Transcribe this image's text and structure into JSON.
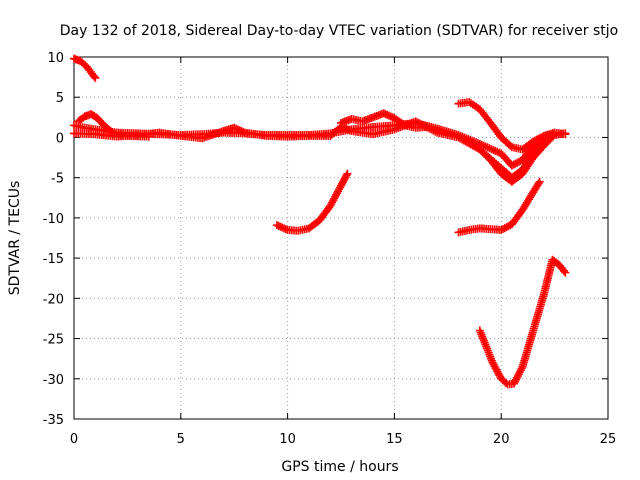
{
  "chart_data": {
    "type": "scatter",
    "title": "Day 132 of 2018, Sidereal Day-to-day VTEC variation (SDTVAR) for receiver stjo",
    "xlabel": "GPS time / hours",
    "ylabel": "SDTVAR / TECUs",
    "xlim": [
      0,
      25
    ],
    "ylim": [
      -35,
      10
    ],
    "xticks": [
      "0",
      "5",
      "10",
      "15",
      "20",
      "25"
    ],
    "yticks": [
      "10",
      "5",
      "0",
      "-5",
      "-10",
      "-15",
      "-20",
      "-25",
      "-30",
      "-35"
    ],
    "grid": true,
    "marker": "plus",
    "color": "#ff0000",
    "series": [
      {
        "points": [
          [
            0,
            9.8
          ],
          [
            0.3,
            9.5
          ],
          [
            0.6,
            8.8
          ],
          [
            0.9,
            7.7
          ],
          [
            1.0,
            7.4
          ]
        ]
      },
      {
        "points": [
          [
            0.2,
            2.0
          ],
          [
            0.5,
            2.6
          ],
          [
            0.8,
            2.9
          ],
          [
            1.1,
            2.4
          ],
          [
            1.4,
            1.5
          ],
          [
            1.8,
            0.6
          ],
          [
            2.5,
            0.2
          ],
          [
            3.5,
            0.1
          ]
        ]
      },
      {
        "points": [
          [
            0,
            1.5
          ],
          [
            0.5,
            1.2
          ],
          [
            1,
            1.0
          ],
          [
            2,
            0.6
          ],
          [
            3,
            0.5
          ],
          [
            4,
            0.4
          ],
          [
            5,
            0.3
          ],
          [
            6,
            0.4
          ],
          [
            7,
            0.6
          ],
          [
            8,
            0.5
          ],
          [
            9,
            0.3
          ],
          [
            10,
            0.3
          ],
          [
            11,
            0.3
          ],
          [
            12,
            0.5
          ],
          [
            13,
            1.0
          ],
          [
            14,
            1.3
          ],
          [
            15,
            1.5
          ],
          [
            16,
            1.8
          ],
          [
            17,
            1.1
          ],
          [
            18,
            0.3
          ],
          [
            19,
            -0.8
          ],
          [
            20,
            -2.0
          ],
          [
            20.5,
            -3.5
          ],
          [
            21,
            -2.8
          ],
          [
            21.5,
            -1.0
          ],
          [
            22,
            0
          ],
          [
            22.5,
            0.4
          ],
          [
            23,
            0.5
          ]
        ]
      },
      {
        "points": [
          [
            0,
            0.5
          ],
          [
            1,
            0.4
          ],
          [
            2,
            0.1
          ],
          [
            3,
            0.3
          ],
          [
            4,
            0.6
          ],
          [
            5,
            0.2
          ],
          [
            6,
            -0.1
          ],
          [
            7,
            0.8
          ],
          [
            7.5,
            1.2
          ],
          [
            8,
            0.6
          ],
          [
            9,
            0.2
          ],
          [
            10,
            0.1
          ],
          [
            11,
            0.2
          ],
          [
            12,
            0.2
          ],
          [
            12.5,
            1.3
          ],
          [
            13,
            0.8
          ],
          [
            14,
            0.4
          ],
          [
            15,
            1.0
          ],
          [
            16,
            2.0
          ],
          [
            17,
            0.6
          ],
          [
            18,
            0
          ],
          [
            19,
            -1.5
          ],
          [
            20,
            -3.8
          ],
          [
            20.5,
            -5.0
          ],
          [
            21,
            -4.0
          ],
          [
            21.5,
            -2.0
          ],
          [
            22,
            -0.5
          ],
          [
            22.5,
            0.3
          ],
          [
            23,
            0.5
          ]
        ]
      },
      {
        "points": [
          [
            12.5,
            1.8
          ],
          [
            13,
            2.3
          ],
          [
            13.5,
            2.0
          ],
          [
            14,
            2.5
          ],
          [
            14.5,
            3.0
          ],
          [
            15,
            2.4
          ],
          [
            15.5,
            1.5
          ],
          [
            16,
            1.2
          ],
          [
            16.5,
            1.3
          ]
        ]
      },
      {
        "points": [
          [
            18,
            4.2
          ],
          [
            18.5,
            4.4
          ],
          [
            19,
            3.5
          ],
          [
            19.5,
            1.8
          ],
          [
            20,
            0
          ],
          [
            20.5,
            -1.2
          ],
          [
            21,
            -1.5
          ],
          [
            21.5,
            -0.5
          ],
          [
            22,
            0.2
          ],
          [
            22.5,
            0.6
          ],
          [
            23,
            0.4
          ]
        ]
      },
      {
        "points": [
          [
            18.5,
            -0.5
          ],
          [
            19,
            -1.5
          ],
          [
            19.5,
            -2.8
          ],
          [
            20,
            -4.5
          ],
          [
            20.5,
            -5.5
          ],
          [
            21,
            -4.5
          ],
          [
            21.5,
            -2.5
          ],
          [
            22,
            -1
          ],
          [
            22.5,
            0.3
          ]
        ]
      },
      {
        "points": [
          [
            9.5,
            -10.9
          ],
          [
            10,
            -11.5
          ],
          [
            10.5,
            -11.6
          ],
          [
            11,
            -11.3
          ],
          [
            11.5,
            -10.3
          ],
          [
            12,
            -8.5
          ],
          [
            12.5,
            -6.0
          ],
          [
            12.8,
            -4.5
          ]
        ]
      },
      {
        "points": [
          [
            18,
            -11.8
          ],
          [
            18.5,
            -11.5
          ],
          [
            19,
            -11.3
          ],
          [
            19.5,
            -11.4
          ],
          [
            20,
            -11.5
          ],
          [
            20.5,
            -10.8
          ],
          [
            21,
            -9.0
          ],
          [
            21.5,
            -6.8
          ],
          [
            21.8,
            -5.5
          ]
        ]
      },
      {
        "points": [
          [
            19,
            -24.0
          ],
          [
            19.3,
            -26.0
          ],
          [
            19.6,
            -28.0
          ],
          [
            20,
            -30.0
          ],
          [
            20.3,
            -30.7
          ],
          [
            20.6,
            -30.6
          ],
          [
            21,
            -28.5
          ],
          [
            21.5,
            -24.0
          ],
          [
            22,
            -19.5
          ],
          [
            22.4,
            -15.2
          ],
          [
            22.7,
            -15.8
          ],
          [
            23,
            -16.8
          ]
        ]
      }
    ]
  }
}
